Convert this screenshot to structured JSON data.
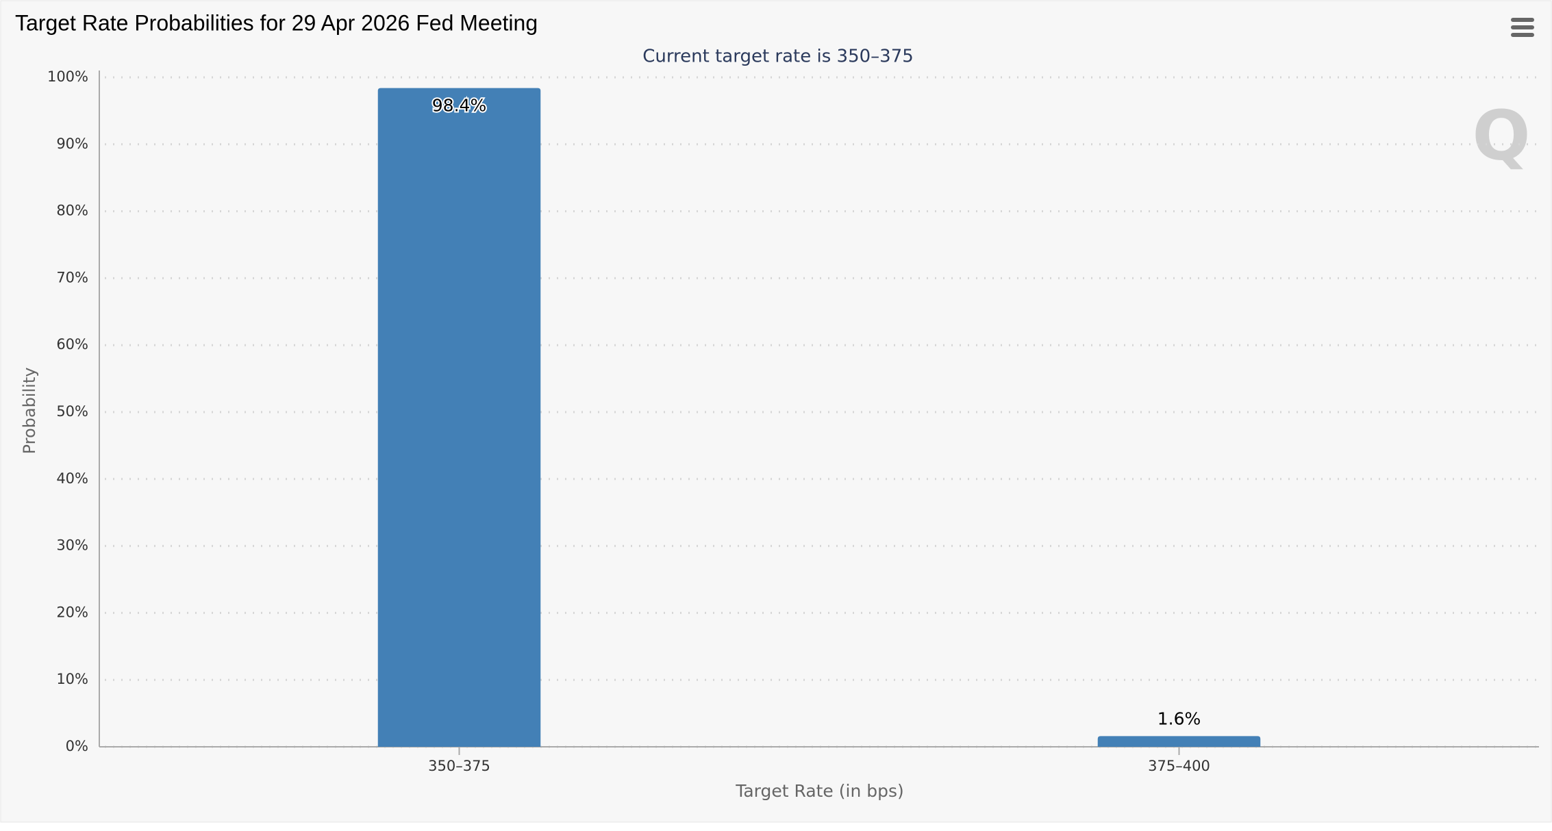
{
  "chart_data": {
    "type": "bar",
    "title": "Target Rate Probabilities for 29 Apr 2026 Fed Meeting",
    "subtitle": "Current target rate is 350–375",
    "x_label": "Target Rate (in bps)",
    "y_label": "Probability",
    "categories": [
      "350–375",
      "375–400"
    ],
    "values": [
      98.4,
      1.6
    ],
    "value_labels": [
      "98.4%",
      "1.6%"
    ],
    "color": "#4380b6",
    "ylim": [
      0,
      100
    ],
    "yticks": [
      {
        "value": 0,
        "label": "0%"
      },
      {
        "value": 10,
        "label": "10%"
      },
      {
        "value": 20,
        "label": "20%"
      },
      {
        "value": 30,
        "label": "30%"
      },
      {
        "value": 40,
        "label": "40%"
      },
      {
        "value": 50,
        "label": "50%"
      },
      {
        "value": 60,
        "label": "60%"
      },
      {
        "value": 70,
        "label": "70%"
      },
      {
        "value": 80,
        "label": "80%"
      },
      {
        "value": 90,
        "label": "90%"
      },
      {
        "value": 100,
        "label": "100%"
      }
    ],
    "grid": true
  }
}
